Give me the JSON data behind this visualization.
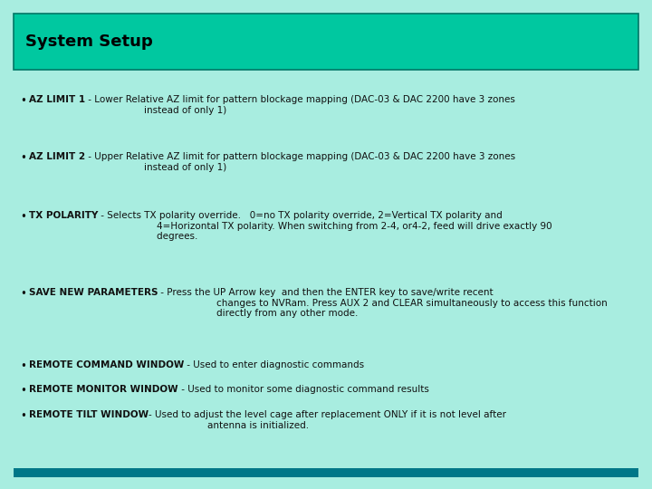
{
  "title": "System Setup",
  "bg_color": "#a8ede0",
  "header_bg": "#00c8a0",
  "header_text_color": "#000000",
  "title_fontsize": 13,
  "body_fontsize": 7.5,
  "footer_color": "#007788",
  "text_color": "#111111",
  "bullet_entries": [
    {
      "bold": "AZ LIMIT 1",
      "normal": " - Lower Relative AZ limit for pattern blockage mapping (DAC-03 & DAC 2200 have 3 zones\n                    instead of only 1)"
    },
    {
      "bold": "AZ LIMIT 2",
      "normal": " - Upper Relative AZ limit for pattern blockage mapping (DAC-03 & DAC 2200 have 3 zones\n                    instead of only 1)"
    },
    {
      "bold": "TX POLARITY",
      "normal": " - Selects TX polarity override.   0=no TX polarity override, 2=Vertical TX polarity and\n                    4=Horizontal TX polarity. When switching from 2-4, or4-2, feed will drive exactly 90\n                    degrees."
    },
    {
      "bold": "SAVE NEW PARAMETERS",
      "normal": " - Press the UP Arrow key  and then the ENTER key to save/write recent\n                    changes to NVRam. Press AUX 2 and CLEAR simultaneously to access this function\n                    directly from any other mode."
    },
    {
      "bold": "REMOTE COMMAND WINDOW",
      "normal": " - Used to enter diagnostic commands"
    },
    {
      "bold": "REMOTE MONITOR WINDOW",
      "normal": " - Used to monitor some diagnostic command results"
    },
    {
      "bold": "REMOTE TILT WINDOW",
      "normal": "- Used to adjust the level cage after replacement ONLY if it is not level after\n                    antenna is initialized."
    }
  ]
}
